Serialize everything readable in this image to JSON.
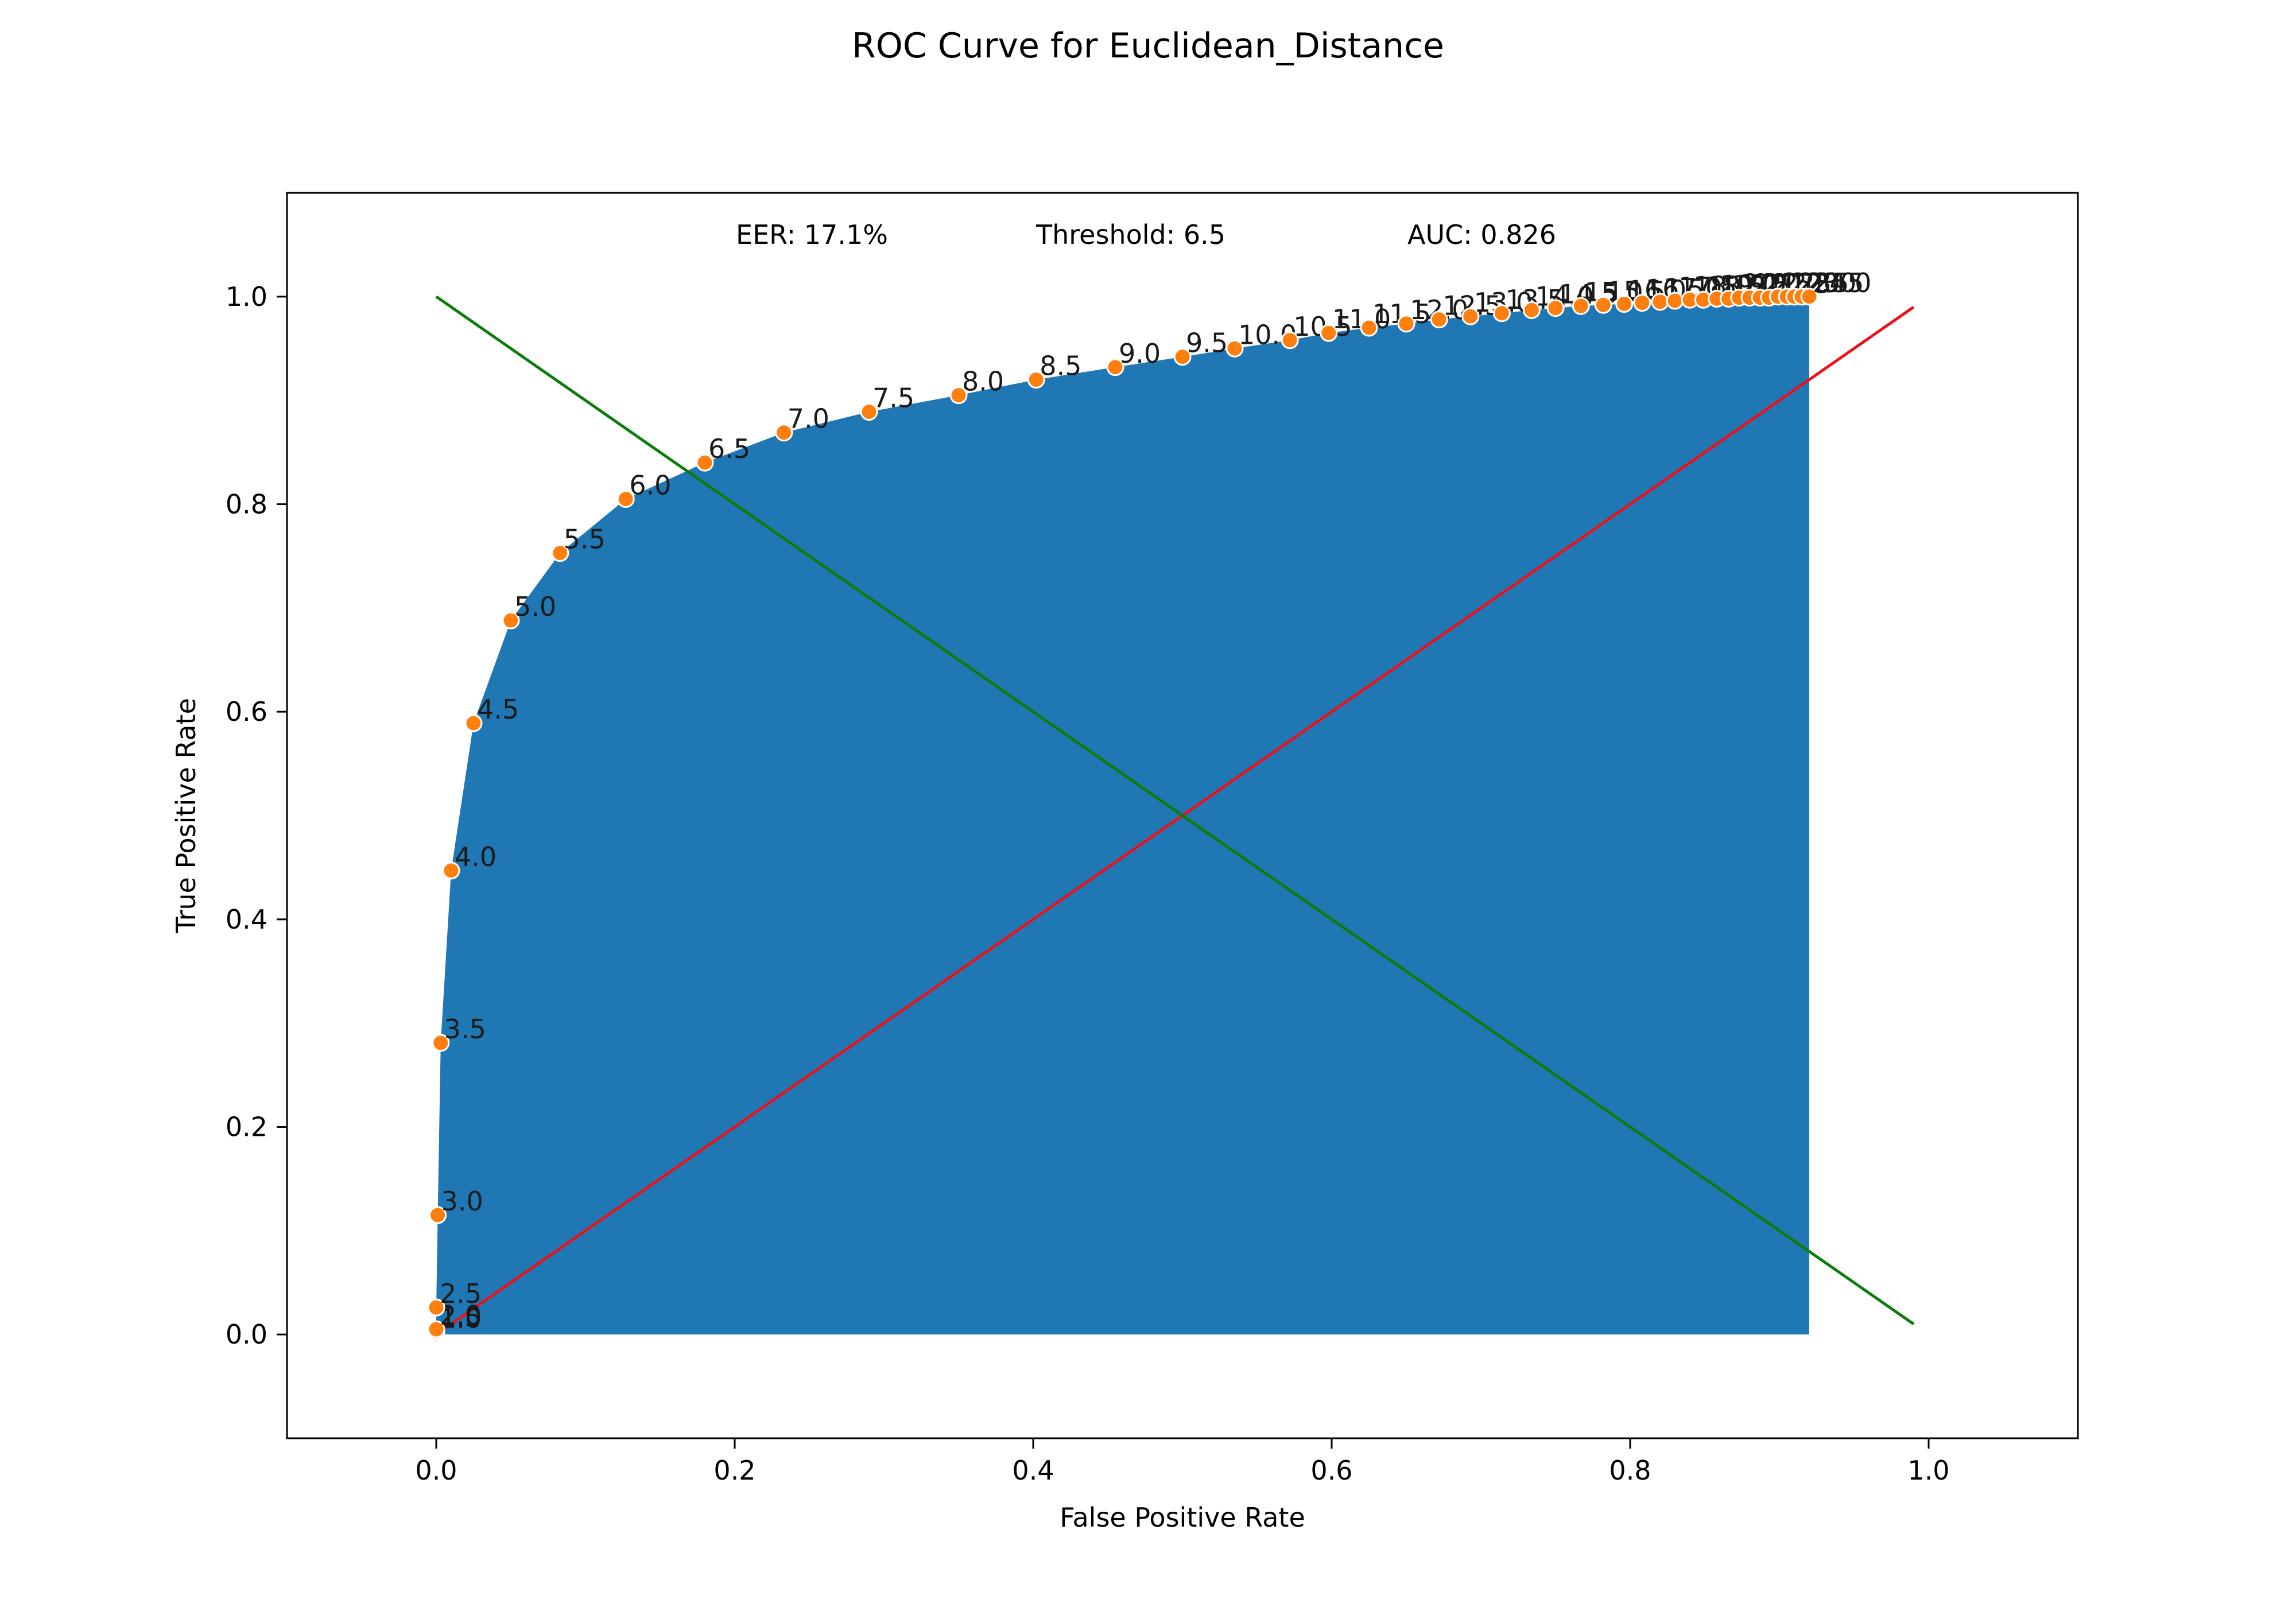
{
  "chart_data": {
    "type": "line",
    "title": "ROC Curve for Euclidean_Distance",
    "xlabel": "False Positive Rate",
    "ylabel": "True Positive Rate",
    "xlim": [
      -0.1,
      1.1
    ],
    "ylim": [
      -0.1,
      1.1
    ],
    "x_ticks": [
      "0.0",
      "0.2",
      "0.4",
      "0.6",
      "0.8",
      "1.0"
    ],
    "y_ticks": [
      "0.0",
      "0.2",
      "0.4",
      "0.6",
      "0.8",
      "1.0"
    ],
    "grid": false,
    "annotations": {
      "eer": "EER: 17.1%",
      "threshold": "Threshold: 6.5",
      "auc": "AUC: 0.826"
    },
    "colors": {
      "fill": "#1f77b4",
      "points": "#ff7f0e",
      "diagonal": "#e8131b",
      "eer_line": "#0a7d0a"
    },
    "roc_points": [
      {
        "fpr": 0.0,
        "tpr": 0.002,
        "label": "1.0"
      },
      {
        "fpr": 0.0,
        "tpr": 0.003,
        "label": "1.5"
      },
      {
        "fpr": 0.0,
        "tpr": 0.005,
        "label": "2.0"
      },
      {
        "fpr": 0.0,
        "tpr": 0.026,
        "label": "2.5"
      },
      {
        "fpr": 0.001,
        "tpr": 0.115,
        "label": "3.0"
      },
      {
        "fpr": 0.003,
        "tpr": 0.281,
        "label": "3.5"
      },
      {
        "fpr": 0.01,
        "tpr": 0.447,
        "label": "4.0"
      },
      {
        "fpr": 0.025,
        "tpr": 0.589,
        "label": "4.5"
      },
      {
        "fpr": 0.05,
        "tpr": 0.688,
        "label": "5.0"
      },
      {
        "fpr": 0.083,
        "tpr": 0.753,
        "label": "5.5"
      },
      {
        "fpr": 0.127,
        "tpr": 0.805,
        "label": "6.0"
      },
      {
        "fpr": 0.18,
        "tpr": 0.84,
        "label": "6.5"
      },
      {
        "fpr": 0.233,
        "tpr": 0.869,
        "label": "7.0"
      },
      {
        "fpr": 0.29,
        "tpr": 0.889,
        "label": "7.5"
      },
      {
        "fpr": 0.35,
        "tpr": 0.905,
        "label": "8.0"
      },
      {
        "fpr": 0.402,
        "tpr": 0.92,
        "label": "8.5"
      },
      {
        "fpr": 0.455,
        "tpr": 0.932,
        "label": "9.0"
      },
      {
        "fpr": 0.5,
        "tpr": 0.942,
        "label": "9.5"
      },
      {
        "fpr": 0.535,
        "tpr": 0.95,
        "label": "10.0"
      },
      {
        "fpr": 0.572,
        "tpr": 0.958,
        "label": "10.5"
      },
      {
        "fpr": 0.598,
        "tpr": 0.965,
        "label": "11.0"
      },
      {
        "fpr": 0.625,
        "tpr": 0.97,
        "label": "11.5"
      },
      {
        "fpr": 0.65,
        "tpr": 0.974,
        "label": "12.0"
      },
      {
        "fpr": 0.672,
        "tpr": 0.978,
        "label": "12.5"
      },
      {
        "fpr": 0.693,
        "tpr": 0.981,
        "label": "13.0"
      },
      {
        "fpr": 0.714,
        "tpr": 0.984,
        "label": "13.5"
      },
      {
        "fpr": 0.734,
        "tpr": 0.987,
        "label": "14.0"
      },
      {
        "fpr": 0.75,
        "tpr": 0.989,
        "label": "14.5"
      },
      {
        "fpr": 0.767,
        "tpr": 0.991,
        "label": "15.0"
      },
      {
        "fpr": 0.782,
        "tpr": 0.992,
        "label": "15.5"
      },
      {
        "fpr": 0.796,
        "tpr": 0.993,
        "label": "16.0"
      },
      {
        "fpr": 0.808,
        "tpr": 0.994,
        "label": "16.5"
      },
      {
        "fpr": 0.82,
        "tpr": 0.995,
        "label": "17.0"
      },
      {
        "fpr": 0.83,
        "tpr": 0.996,
        "label": "17.5"
      },
      {
        "fpr": 0.84,
        "tpr": 0.997,
        "label": "18.0"
      },
      {
        "fpr": 0.849,
        "tpr": 0.997,
        "label": "18.5"
      },
      {
        "fpr": 0.858,
        "tpr": 0.998,
        "label": "19.0"
      },
      {
        "fpr": 0.866,
        "tpr": 0.998,
        "label": "19.5"
      },
      {
        "fpr": 0.873,
        "tpr": 0.999,
        "label": "20.0"
      },
      {
        "fpr": 0.88,
        "tpr": 0.999,
        "label": "20.5"
      },
      {
        "fpr": 0.887,
        "tpr": 0.999,
        "label": "21.0"
      },
      {
        "fpr": 0.893,
        "tpr": 0.999,
        "label": "21.5"
      },
      {
        "fpr": 0.899,
        "tpr": 1.0,
        "label": "22.0"
      },
      {
        "fpr": 0.905,
        "tpr": 1.0,
        "label": "22.5"
      },
      {
        "fpr": 0.91,
        "tpr": 1.0,
        "label": "23.0"
      },
      {
        "fpr": 0.915,
        "tpr": 1.0,
        "label": "23.5"
      },
      {
        "fpr": 0.92,
        "tpr": 1.0,
        "label": "24.0"
      }
    ],
    "diagonal_line": {
      "x": [
        0.0,
        0.99
      ],
      "y": [
        0.0,
        0.99
      ]
    },
    "eer_line": {
      "x": [
        0.0,
        0.99
      ],
      "y": [
        1.0,
        0.01
      ]
    }
  }
}
